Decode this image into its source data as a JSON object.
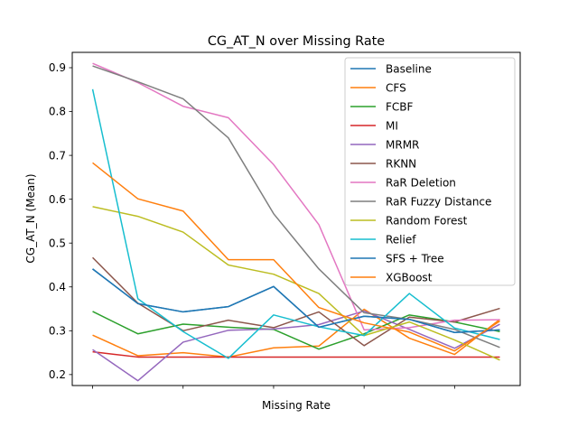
{
  "chart_data": {
    "type": "line",
    "title": "CG_AT_N over Missing Rate",
    "xlabel": "Missing Rate",
    "ylabel": "CG_AT_N (Mean)",
    "x": [
      0,
      1,
      2,
      3,
      4,
      5,
      6,
      7,
      8,
      9
    ],
    "xlim": [
      -0.45,
      9.45
    ],
    "x_ticks": [
      0,
      2,
      4,
      6,
      8
    ],
    "x_tick_labels_shown": false,
    "ylim": [
      0.175,
      0.935
    ],
    "y_ticks": [
      0.2,
      0.3,
      0.4,
      0.5,
      0.6,
      0.7,
      0.8,
      0.9
    ],
    "y_tick_labels": [
      "0.2",
      "0.3",
      "0.4",
      "0.5",
      "0.6",
      "0.7",
      "0.8",
      "0.9"
    ],
    "grid": false,
    "legend_position": "top-right",
    "series": [
      {
        "name": "Baseline",
        "color": "#1f77b4",
        "values": [
          0.441,
          0.362,
          0.343,
          0.355,
          0.401,
          0.308,
          0.333,
          0.326,
          0.296,
          0.302
        ]
      },
      {
        "name": "CFS",
        "color": "#ff7f0e",
        "values": [
          0.29,
          0.243,
          0.25,
          0.24,
          0.261,
          0.265,
          0.349,
          0.283,
          0.246,
          0.326
        ]
      },
      {
        "name": "FCBF",
        "color": "#2ca02c",
        "values": [
          0.344,
          0.293,
          0.315,
          0.308,
          0.303,
          0.258,
          0.293,
          0.336,
          0.32,
          0.298
        ]
      },
      {
        "name": "MI",
        "color": "#d62728",
        "values": [
          0.252,
          0.24,
          0.24,
          0.24,
          0.24,
          0.24,
          0.24,
          0.24,
          0.24,
          0.24
        ]
      },
      {
        "name": "MRMR",
        "color": "#9467bd",
        "values": [
          0.257,
          0.186,
          0.274,
          0.301,
          0.304,
          0.314,
          0.345,
          0.303,
          0.26,
          0.315
        ]
      },
      {
        "name": "RKNN",
        "color": "#8c564b",
        "values": [
          0.467,
          0.363,
          0.3,
          0.324,
          0.307,
          0.343,
          0.266,
          0.331,
          0.32,
          0.351
        ]
      },
      {
        "name": "RaR Deletion",
        "color": "#e377c2",
        "values": [
          0.91,
          0.866,
          0.812,
          0.786,
          0.679,
          0.542,
          0.302,
          0.307,
          0.324,
          0.325
        ]
      },
      {
        "name": "RaR Fuzzy Distance",
        "color": "#7f7f7f",
        "values": [
          0.904,
          0.868,
          0.829,
          0.74,
          0.567,
          0.441,
          0.341,
          0.326,
          0.303,
          0.262
        ]
      },
      {
        "name": "Random Forest",
        "color": "#bcbd22",
        "values": [
          0.583,
          0.561,
          0.525,
          0.45,
          0.429,
          0.385,
          0.289,
          0.32,
          0.279,
          0.233
        ]
      },
      {
        "name": "Relief",
        "color": "#17becf",
        "values": [
          0.851,
          0.373,
          0.298,
          0.237,
          0.336,
          0.309,
          0.289,
          0.385,
          0.306,
          0.28
        ]
      },
      {
        "name": "SFS + Tree",
        "color": "#1f77b4",
        "values": [
          0.441,
          0.362,
          0.343,
          0.355,
          0.401,
          0.308,
          0.333,
          0.326,
          0.296,
          0.302
        ]
      },
      {
        "name": "XGBoost",
        "color": "#ff7f0e",
        "values": [
          0.683,
          0.601,
          0.573,
          0.462,
          0.462,
          0.353,
          0.318,
          0.297,
          0.254,
          0.322
        ]
      }
    ]
  }
}
